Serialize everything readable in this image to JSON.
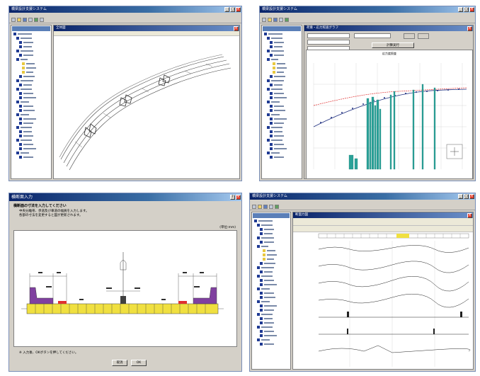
{
  "w1": {
    "title": "橋梁設計支援システム",
    "subtitle": "全体図"
  },
  "w2": {
    "title": "橋梁設計支援システム",
    "subtitle": "荷重・応力照査グラフ",
    "graph_title": "応力度照査",
    "calc_button": "計算実行"
  },
  "w3": {
    "title": "横断面入力",
    "heading": "横断面の寸法を入力してください",
    "desc1": "中央分離帯、歩道及び車道の幅員を入力します。",
    "desc2": "各部の寸法を変更すると図が更新されます。",
    "unit": "(単位:mm)",
    "note": "※ 入力後、OKボタンを押してください。",
    "cancel_label": "取消",
    "ok_label": "OK"
  },
  "w4": {
    "title": "橋梁設計支援システム",
    "subtitle": "断面力図"
  },
  "colors": {
    "title_blue": "#0a246a",
    "tree_node": "#1f3a93",
    "teal": "#2aa198",
    "red_curve": "#e03030",
    "purple": "#8040a0",
    "yellow_deck": "#f0e040"
  }
}
